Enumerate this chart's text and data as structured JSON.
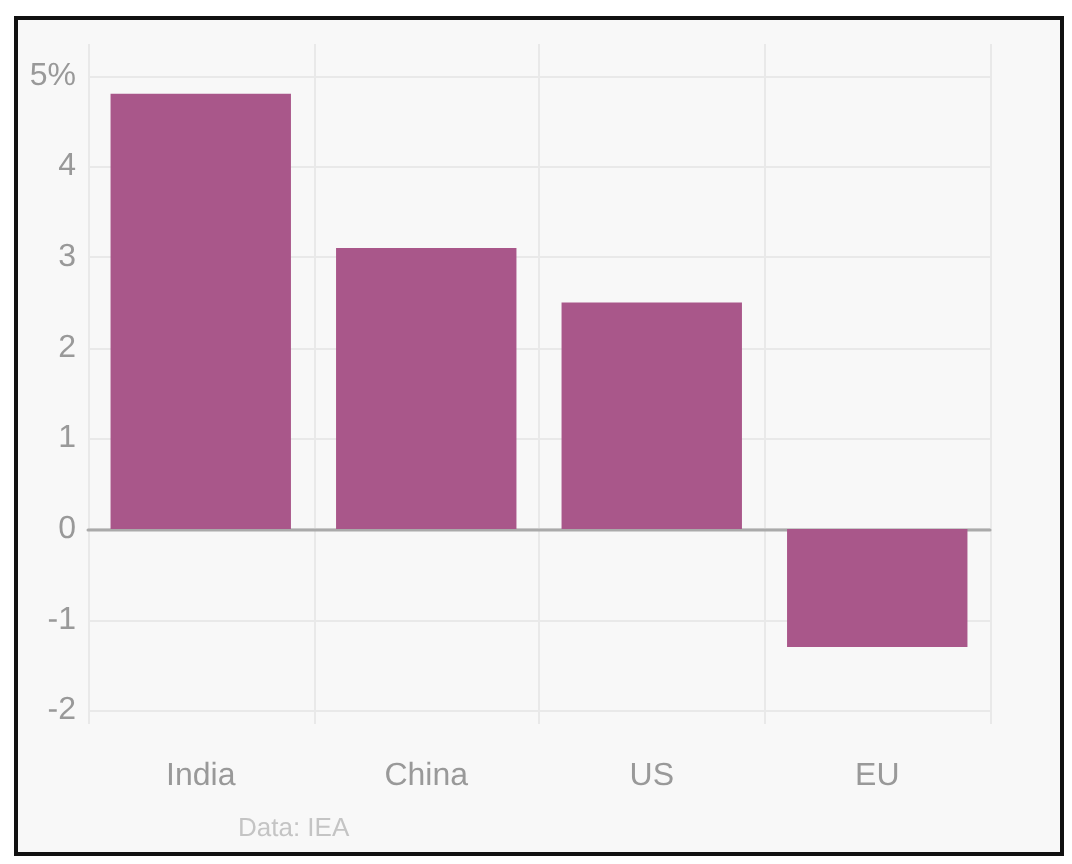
{
  "chart_data": {
    "type": "bar",
    "categories": [
      "India",
      "China",
      "US",
      "EU"
    ],
    "values": [
      4.8,
      3.1,
      2.5,
      -1.3
    ],
    "color": "#a9578a",
    "ylim": [
      -2.15,
      5.35
    ],
    "yticks": [
      -2,
      -1,
      0,
      1,
      2,
      3,
      4,
      {
        "value": 5,
        "label": "5%"
      }
    ],
    "grid": true,
    "annotations": [
      "Data: IEA"
    ]
  }
}
